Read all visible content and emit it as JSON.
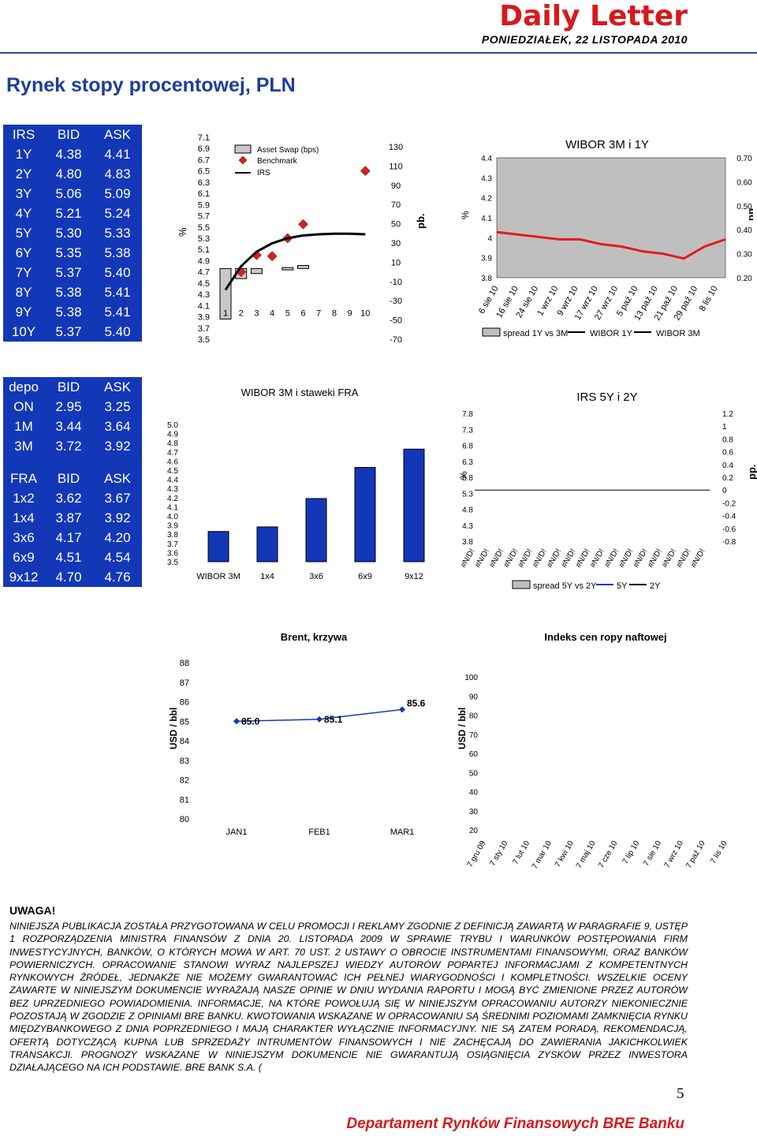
{
  "header": {
    "title": "Daily Letter",
    "date": "PONIEDZIAŁEK, 22 LISTOPADA 2010"
  },
  "section_title": "Rynek stopy procentowej, PLN",
  "irs_table": {
    "columns": [
      "IRS",
      "BID",
      "ASK"
    ],
    "rows": [
      [
        "1Y",
        "4.38",
        "4.41"
      ],
      [
        "2Y",
        "4.80",
        "4.83"
      ],
      [
        "3Y",
        "5.06",
        "5.09"
      ],
      [
        "4Y",
        "5.21",
        "5.24"
      ],
      [
        "5Y",
        "5.30",
        "5.33"
      ],
      [
        "6Y",
        "5.35",
        "5.38"
      ],
      [
        "7Y",
        "5.37",
        "5.40"
      ],
      [
        "8Y",
        "5.38",
        "5.41"
      ],
      [
        "9Y",
        "5.38",
        "5.41"
      ],
      [
        "10Y",
        "5.37",
        "5.40"
      ]
    ]
  },
  "depo_table": {
    "columns": [
      "depo",
      "BID",
      "ASK"
    ],
    "rows": [
      [
        "ON",
        "2.95",
        "3.25"
      ],
      [
        "1M",
        "3.44",
        "3.64"
      ],
      [
        "3M",
        "3.72",
        "3.92"
      ]
    ]
  },
  "fra_table": {
    "columns": [
      "FRA",
      "BID",
      "ASK"
    ],
    "rows": [
      [
        "1x2",
        "3.62",
        "3.67"
      ],
      [
        "1x4",
        "3.87",
        "3.92"
      ],
      [
        "3x6",
        "4.17",
        "4.20"
      ],
      [
        "6x9",
        "4.51",
        "4.54"
      ],
      [
        "9x12",
        "4.70",
        "4.76"
      ]
    ]
  },
  "chart_data": [
    {
      "id": "irs-curve",
      "type": "bar",
      "legend": [
        "Asset Swap (bps)",
        "Benchmark",
        "IRS"
      ],
      "left_axis_label": "%",
      "right_axis_label": "pb.",
      "left_ticks": [
        "7.1",
        "6.9",
        "6.7",
        "6.5",
        "6.3",
        "6.1",
        "5.9",
        "5.7",
        "5.5",
        "5.3",
        "5.1",
        "4.9",
        "4.7",
        "4.5",
        "4.3",
        "4.1",
        "3.9",
        "3.7",
        "3.5"
      ],
      "right_ticks": [
        "130",
        "110",
        "90",
        "70",
        "50",
        "30",
        "10",
        "-10",
        "-30",
        "-50",
        "-70"
      ],
      "x": [
        "1",
        "2",
        "3",
        "4",
        "5",
        "6",
        "7",
        "8",
        "9",
        "10"
      ],
      "ylim_left": [
        3.5,
        7.1
      ],
      "ylim_right": [
        -70,
        130
      ],
      "asset_swap_bps": [
        -50,
        -10,
        -5,
        null,
        1,
        3,
        null,
        null,
        null,
        null
      ],
      "benchmark_pct": [
        null,
        4.7,
        5.0,
        4.98,
        5.3,
        5.55,
        null,
        null,
        null,
        6.5
      ],
      "irs_pct": [
        4.38,
        4.8,
        5.06,
        5.21,
        5.3,
        5.35,
        5.37,
        5.38,
        5.38,
        5.37
      ]
    },
    {
      "id": "wibor-3m-1y",
      "type": "area",
      "title": "WIBOR 3M i 1Y",
      "left_axis_label": "%",
      "right_axis_label": "pp.",
      "left_ticks": [
        "4.4",
        "4.3",
        "4.2",
        "4.1",
        "4",
        "3.9",
        "3.8"
      ],
      "right_ticks": [
        "0.70",
        "0.60",
        "0.50",
        "0.40",
        "0.30",
        "0.20"
      ],
      "categories": [
        "6 sie 10",
        "16 sie 10",
        "24 sie 10",
        "1 wrz 10",
        "9 wrz 10",
        "17 wrz 10",
        "27 wrz 10",
        "5 paź 10",
        "13 paź 10",
        "21 paź 10",
        "29 paź 10",
        "8 lis 10"
      ],
      "legend": [
        "spread 1Y vs 3M",
        "WIBOR 1Y",
        "WIBOR 3M"
      ],
      "ylim_left": [
        3.8,
        4.4
      ],
      "ylim_right": [
        0.2,
        0.7
      ],
      "spread_pp": [
        0.39,
        0.38,
        0.37,
        0.36,
        0.36,
        0.34,
        0.33,
        0.31,
        0.3,
        0.28,
        0.33,
        0.36
      ]
    },
    {
      "id": "wibor-fra",
      "type": "bar",
      "title": "WIBOR 3M i staweki FRA",
      "y_ticks": [
        "5.0",
        "4.9",
        "4.8",
        "4.7",
        "4.6",
        "4.5",
        "4.4",
        "4.3",
        "4.2",
        "4.1",
        "4.0",
        "3.9",
        "3.8",
        "3.7",
        "3.6",
        "3.5"
      ],
      "categories": [
        "WIBOR 3M",
        "1x4",
        "3x6",
        "6x9",
        "9x12"
      ],
      "values": [
        3.83,
        3.88,
        4.19,
        4.53,
        4.73
      ],
      "ylim": [
        3.5,
        5.0
      ],
      "bar_color": "#1238b8"
    },
    {
      "id": "irs-5y-2y",
      "type": "line",
      "title": "IRS 5Y i 2Y",
      "left_axis_label": "%",
      "right_axis_label": "pp.",
      "left_ticks": [
        "7.8",
        "7.3",
        "6.8",
        "6.3",
        "5.8",
        "5.3",
        "4.8",
        "4.3",
        "3.8"
      ],
      "right_ticks": [
        "1.2",
        "1",
        "0.8",
        "0.6",
        "0.4",
        "0.2",
        "0",
        "-0.2",
        "-0.4",
        "-0.6",
        "-0.8"
      ],
      "categories": [
        "#N/D!",
        "#N/D!",
        "#N/D!",
        "#N/D!",
        "#N/D!",
        "#N/D!",
        "#N/D!",
        "#N/D!",
        "#N/D!",
        "#N/D!",
        "#N/D!",
        "#N/D!",
        "#N/D!",
        "#N/D!",
        "#N/D!",
        "#N/D!",
        "#N/D!"
      ],
      "legend": [
        "spread 5Y vs 2Y",
        "5Y",
        "2Y"
      ],
      "ylim_left": [
        3.8,
        7.8
      ],
      "ylim_right": [
        -0.8,
        1.2
      ],
      "line_value_pp": 0
    },
    {
      "id": "brent-curve",
      "type": "line",
      "title": "Brent, krzywa",
      "ylabel": "USD / bbl",
      "y_ticks": [
        "88",
        "87",
        "86",
        "85",
        "84",
        "83",
        "82",
        "81",
        "80"
      ],
      "categories": [
        "JAN1",
        "FEB1",
        "MAR1"
      ],
      "values": [
        85.0,
        85.1,
        85.6
      ],
      "value_labels": [
        "85.0",
        "85.1",
        "85.6"
      ],
      "ylim": [
        80,
        88
      ]
    },
    {
      "id": "oil-index",
      "type": "line",
      "title": "Indeks cen ropy naftowej",
      "ylabel": "USD / bbl",
      "y_ticks": [
        "100",
        "90",
        "80",
        "70",
        "60",
        "50",
        "40",
        "30",
        "20"
      ],
      "categories": [
        "7 gru 09",
        "7 sty 10",
        "7 lut 10",
        "7 mar 10",
        "7 kwi 10",
        "7 maj 10",
        "7 cze 10",
        "7 lip 10",
        "7 sie 10",
        "7 wrz 10",
        "7 paź 10",
        "7 lis 10"
      ],
      "ylim": [
        20,
        100
      ]
    }
  ],
  "uwaga": {
    "heading": "UWAGA!",
    "text": "NINIEJSZA PUBLIKACJA ZOSTAŁA PRZYGOTOWANA W CELU PROMOCJI I REKLAMY ZGODNIE Z DEFINICJĄ ZAWARTĄ W PARAGRAFIE 9, USTĘP 1 ROZPORZĄDZENIA MINISTRA FINANSÓW Z DNIA 20. LISTOPADA 2009 W SPRAWIE TRYBU I WARUNKÓW POSTĘPOWANIA FIRM INWESTYCYJNYCH, BANKÓW, O KTÓRYCH MOWA W ART. 70 UST. 2 USTAWY O OBROCIE INSTRUMENTAMI FINANSOWYMI, ORAZ BANKÓW POWIERNICZYCH. OPRACOWANIE STANOWI WYRAZ NAJLEPSZEJ WIEDZY AUTORÓW POPARTEJ INFORMACJAMI Z KOMPETENTNYCH RYNKOWYCH ŹRÓDEŁ, JEDNAKŻE NIE MOŻEMY GWARANTOWAĆ ICH PEŁNEJ WIARYGODNOŚCI I KOMPLETNOŚCI. WSZELKIE OCENY ZAWARTE W NINIEJSZYM DOKUMENCIE WYRAŻAJĄ NASZE OPINIE W DNIU WYDANIA RAPORTU I MOGĄ BYĆ ZMIENIONE PRZEZ AUTORÓW BEZ UPRZEDNIEGO POWIADOMIENIA. INFORMACJE, NA KTÓRE POWOŁUJĄ SIĘ W NINIEJSZYM OPRACOWANIU AUTORZY NIEKONIECZNIE POZOSTAJĄ W ZGODZIE Z OPINIAMI BRE BANKU. KWOTOWANIA WSKAZANE W OPRACOWANIU SĄ ŚREDNIMI POZIOMAMI ZAMKNIĘCIA RYNKU MIĘDZYBANKOWEGO Z DNIA POPRZEDNIEGO I MAJĄ CHARAKTER WYŁĄCZNIE INFORMACYJNY. NIE SĄ ZATEM PORADĄ, REKOMENDACJĄ, OFERTĄ DOTYCZĄCĄ KUPNA LUB SPRZEDAŻY INTRUMENTÓW FINANSOWYCH I NIE ZACHĘCAJĄ DO ZAWIERANIA JAKICHKOLWIEK TRANSAKCJI. PROGNOZY WSKAZANE W NINIEJSZYM DOKUMENCIE NIE GWARANTUJĄ OSIĄGNIĘCIA ZYSKÓW PRZEZ INWESTORA DZIAŁAJĄCEGO NA ICH PODSTAWIE. BRE BANK S.A. ("
  },
  "page_number": "5",
  "footer": "Departament Rynków Finansowych BRE Banku"
}
